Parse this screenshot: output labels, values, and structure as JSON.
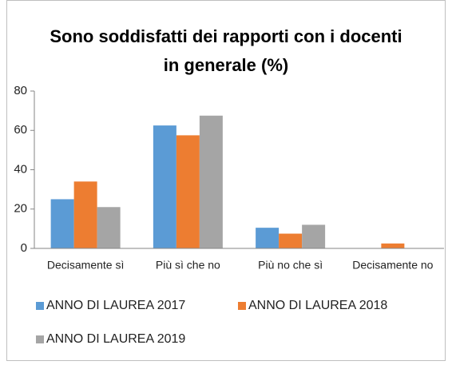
{
  "chart_data": {
    "type": "bar",
    "title": "Sono soddisfatti dei rapporti con i docenti in generale (%)",
    "categories": [
      "Decisamente sì",
      "Più sì che no",
      "Più no che sì",
      "Decisamente no"
    ],
    "series": [
      {
        "name": "ANNO DI LAUREA 2017",
        "color": "#5b9bd5",
        "values": [
          25,
          62.5,
          10.5,
          0
        ]
      },
      {
        "name": "ANNO DI LAUREA 2018",
        "color": "#ed7d31",
        "values": [
          34,
          57.5,
          7.5,
          2.5
        ]
      },
      {
        "name": "ANNO DI LAUREA 2019",
        "color": "#a5a5a5",
        "values": [
          21,
          67.5,
          12,
          0
        ]
      }
    ],
    "ylim": [
      0,
      80
    ],
    "yticks": [
      0,
      20,
      40,
      60,
      80
    ],
    "grid": false,
    "legend": "bottom"
  }
}
